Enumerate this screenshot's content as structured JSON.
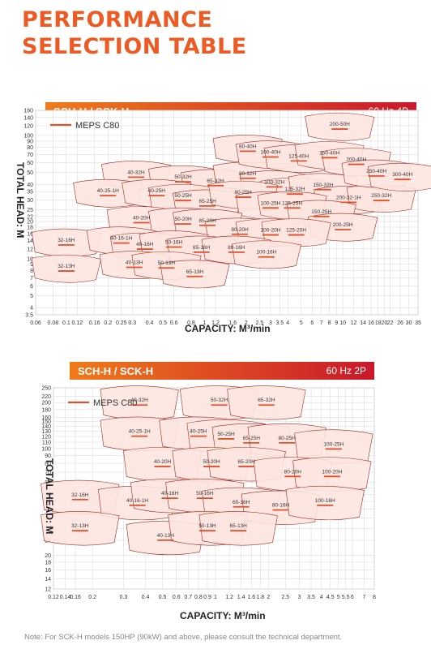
{
  "page_title_line1": "PERFORMANCE",
  "page_title_line2": "SELECTION TABLE",
  "note": "Note: For SCK-H models 150HP (90kW) and above, please consult the technical department.",
  "colors": {
    "accent": "#ee5a24",
    "header_start": "#f07a1a",
    "header_end": "#c9182b",
    "region_fill": "#fde6e0",
    "region_stroke": "#9b2a1e",
    "meps_line": "#e0502a"
  },
  "chart_data": [
    {
      "type": "area",
      "header": "SCH-H / SCK-H",
      "frequency": "60 Hz 4P",
      "legend": "MEPS C80",
      "xlabel": "CAPACITY: M³/min",
      "ylabel": "TOTAL HEAD: M",
      "x_scale": "log",
      "y_scale": "log",
      "xlim": [
        0.06,
        35
      ],
      "ylim": [
        3.5,
        160
      ],
      "x_ticks": [
        "0.06",
        "0.08",
        "0.1",
        "0.12",
        "0.16",
        "0.2",
        "0.25",
        "0.3",
        "0.4",
        "0.5",
        "0.6",
        "0.8",
        "1",
        "1.2",
        "1.6",
        "2",
        "2.5",
        "3",
        "3.5",
        "4",
        "5",
        "6",
        "7",
        "8",
        "9",
        "10",
        "12",
        "14",
        "16",
        "18",
        "20",
        "22",
        "26",
        "30",
        "35"
      ],
      "y_ticks": [
        "3.5",
        "4",
        "5",
        "6",
        "7",
        "8",
        "9",
        "10",
        "12",
        "14",
        "16",
        "18",
        "20",
        "22",
        "25",
        "30",
        "35",
        "40",
        "50",
        "60",
        "70",
        "80",
        "90",
        "100",
        "120",
        "140",
        "160"
      ],
      "models": [
        {
          "name": "40-32H",
          "x": 0.32,
          "y": 48
        },
        {
          "name": "50-32H",
          "x": 0.7,
          "y": 44
        },
        {
          "name": "65-32H",
          "x": 1.2,
          "y": 41
        },
        {
          "name": "80-32H",
          "x": 2.05,
          "y": 47
        },
        {
          "name": "100-32H",
          "x": 3.2,
          "y": 40
        },
        {
          "name": "125-32H",
          "x": 4.5,
          "y": 35
        },
        {
          "name": "150-32H",
          "x": 7.2,
          "y": 38
        },
        {
          "name": "200-32-1H",
          "x": 11,
          "y": 30
        },
        {
          "name": "250-32H",
          "x": 19,
          "y": 31
        },
        {
          "name": "80-40H",
          "x": 2.05,
          "y": 78
        },
        {
          "name": "100-40H",
          "x": 3.0,
          "y": 70
        },
        {
          "name": "125-40H",
          "x": 4.8,
          "y": 65
        },
        {
          "name": "150-40H",
          "x": 8,
          "y": 69
        },
        {
          "name": "200-40H",
          "x": 12.5,
          "y": 61
        },
        {
          "name": "250-40H",
          "x": 17.5,
          "y": 49
        },
        {
          "name": "300-40H",
          "x": 27,
          "y": 46
        },
        {
          "name": "200-50H",
          "x": 9.5,
          "y": 118
        },
        {
          "name": "40-25-1H",
          "x": 0.2,
          "y": 34
        },
        {
          "name": "40-25H",
          "x": 0.45,
          "y": 34
        },
        {
          "name": "50-25H",
          "x": 0.7,
          "y": 31
        },
        {
          "name": "65-25H",
          "x": 1.05,
          "y": 28
        },
        {
          "name": "80-25H",
          "x": 1.9,
          "y": 33
        },
        {
          "name": "100-25H",
          "x": 3.0,
          "y": 27
        },
        {
          "name": "125-25H",
          "x": 4.3,
          "y": 27
        },
        {
          "name": "150-25H",
          "x": 7,
          "y": 23
        },
        {
          "name": "200-25H",
          "x": 10,
          "y": 18
        },
        {
          "name": "40-20H",
          "x": 0.35,
          "y": 20.5
        },
        {
          "name": "50-20H",
          "x": 0.7,
          "y": 20
        },
        {
          "name": "65-20H",
          "x": 1.05,
          "y": 19.5
        },
        {
          "name": "80-20H",
          "x": 1.8,
          "y": 16.5
        },
        {
          "name": "100-20H",
          "x": 3.0,
          "y": 16.3
        },
        {
          "name": "125-20H",
          "x": 4.6,
          "y": 16.3
        },
        {
          "name": "32-16H",
          "x": 0.1,
          "y": 13.5
        },
        {
          "name": "40-16-1H",
          "x": 0.25,
          "y": 14
        },
        {
          "name": "40-16H",
          "x": 0.37,
          "y": 12.5
        },
        {
          "name": "50-16H",
          "x": 0.6,
          "y": 13
        },
        {
          "name": "65-16H",
          "x": 0.95,
          "y": 11.8
        },
        {
          "name": "80-16H",
          "x": 1.7,
          "y": 11.8
        },
        {
          "name": "100-16H",
          "x": 2.8,
          "y": 10.8
        },
        {
          "name": "32-13H",
          "x": 0.1,
          "y": 8.3
        },
        {
          "name": "40-13H",
          "x": 0.31,
          "y": 8.9
        },
        {
          "name": "50-13H",
          "x": 0.53,
          "y": 8.8
        },
        {
          "name": "65-13H",
          "x": 0.85,
          "y": 7.5
        }
      ]
    },
    {
      "type": "area",
      "header": "SCH-H / SCK-H",
      "frequency": "60 Hz 2P",
      "legend": "MEPS C80",
      "xlabel": "CAPACITY: M³/min",
      "ylabel": "TOTAL HEAD: M",
      "x_scale": "log",
      "y_scale": "log",
      "xlim": [
        0.12,
        8
      ],
      "ylim": [
        12,
        250
      ],
      "x_ticks": [
        "0.12",
        "0.14",
        "0.16",
        "0.2",
        "0.3",
        "0.4",
        "0.5",
        "0.6",
        "0.7",
        "0.8",
        "0.9",
        "1",
        "1.2",
        "1.4",
        "1.6",
        "1.8",
        "2",
        "2.5",
        "3",
        "3.5",
        "4",
        "4.5",
        "5",
        "5.5",
        "6",
        "7",
        "8"
      ],
      "y_ticks": [
        "12",
        "14",
        "16",
        "18",
        "20",
        "25",
        "30",
        "35",
        "40",
        "45",
        "50",
        "55",
        "60",
        "70",
        "80",
        "90",
        "100",
        "110",
        "120",
        "130",
        "140",
        "150",
        "160",
        "180",
        "200",
        "220",
        "250"
      ],
      "models": [
        {
          "name": "40-32H",
          "x": 0.37,
          "y": 200
        },
        {
          "name": "50-32H",
          "x": 1.05,
          "y": 200
        },
        {
          "name": "65-32H",
          "x": 1.95,
          "y": 200
        },
        {
          "name": "40-25-1H",
          "x": 0.37,
          "y": 125
        },
        {
          "name": "40-25H",
          "x": 0.8,
          "y": 125
        },
        {
          "name": "50-25H",
          "x": 1.15,
          "y": 120
        },
        {
          "name": "65-25H",
          "x": 1.6,
          "y": 113
        },
        {
          "name": "80-25H",
          "x": 2.55,
          "y": 113
        },
        {
          "name": "100-25H",
          "x": 4.7,
          "y": 103
        },
        {
          "name": "40-20H",
          "x": 0.5,
          "y": 79
        },
        {
          "name": "50-20H",
          "x": 0.95,
          "y": 79
        },
        {
          "name": "65-20H",
          "x": 1.5,
          "y": 79
        },
        {
          "name": "80-20H",
          "x": 2.75,
          "y": 68
        },
        {
          "name": "100-20H",
          "x": 4.6,
          "y": 68
        },
        {
          "name": "32-16H",
          "x": 0.17,
          "y": 48
        },
        {
          "name": "40-16-1H",
          "x": 0.36,
          "y": 44
        },
        {
          "name": "40-16H",
          "x": 0.55,
          "y": 49
        },
        {
          "name": "50-16H",
          "x": 0.87,
          "y": 49
        },
        {
          "name": "65-16H",
          "x": 1.4,
          "y": 43
        },
        {
          "name": "80-16H",
          "x": 2.35,
          "y": 41
        },
        {
          "name": "100-16H",
          "x": 4.2,
          "y": 44
        },
        {
          "name": "32-13H",
          "x": 0.17,
          "y": 30
        },
        {
          "name": "40-13H",
          "x": 0.52,
          "y": 26
        },
        {
          "name": "50-13H",
          "x": 0.9,
          "y": 30
        },
        {
          "name": "65-13H",
          "x": 1.35,
          "y": 30
        }
      ]
    }
  ]
}
